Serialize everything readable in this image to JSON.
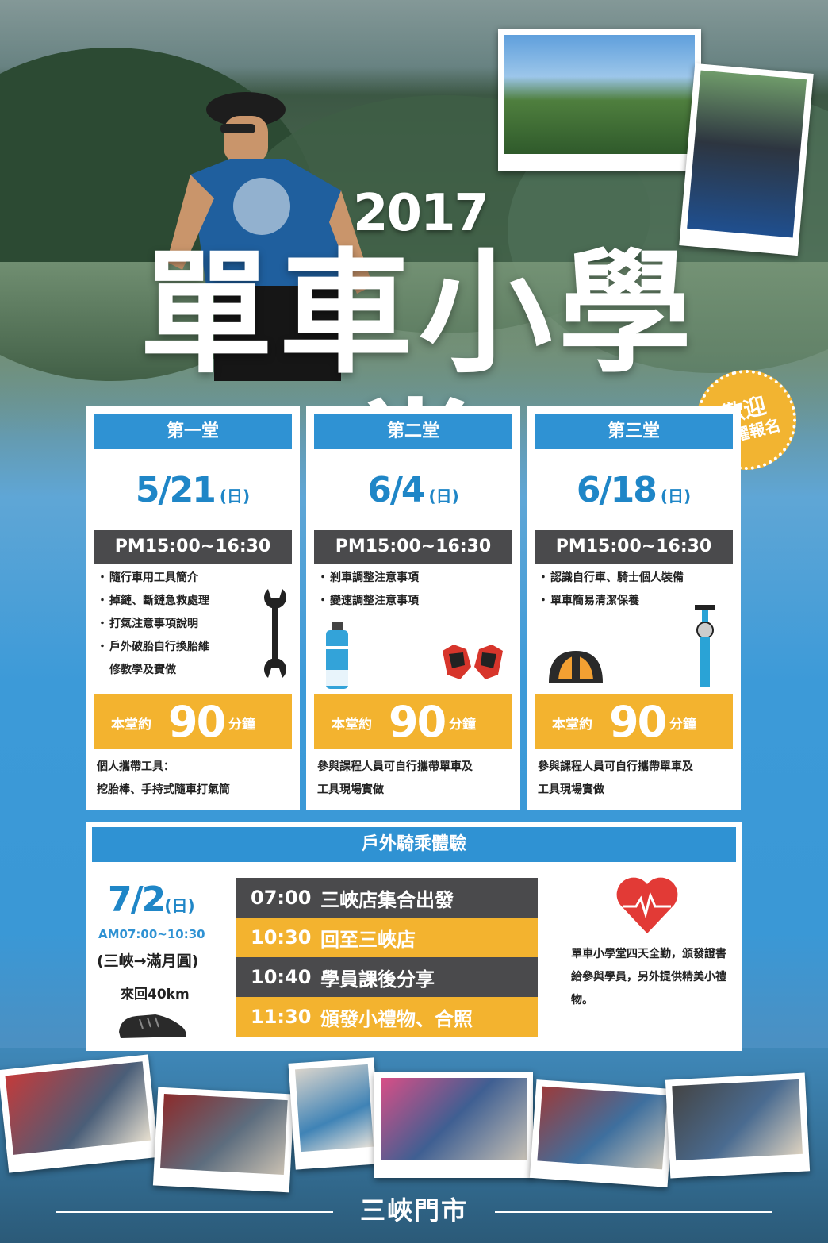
{
  "event": {
    "year": "2017",
    "title": "單車小學堂",
    "badge_line1": "歡迎",
    "badge_line2": "踴躍報名"
  },
  "sessions": [
    {
      "header": "第一堂",
      "date": "5/21",
      "weekday": "(日)",
      "time": "PM15:00~16:30",
      "items": [
        "隨行車用工具簡介",
        "掉鏈、斷鏈急救處理",
        "打氣注意事項說明",
        "戶外破胎自行換胎維",
        "修教學及實做"
      ],
      "duration_prefix": "本堂約",
      "duration_value": "90",
      "duration_suffix": "分鐘",
      "note_line1": "個人攜帶工具：",
      "note_line2": "挖胎棒、手持式隨車打氣筒",
      "icon": "wrench-icon"
    },
    {
      "header": "第二堂",
      "date": "6/4",
      "weekday": "(日)",
      "time": "PM15:00~16:30",
      "items": [
        "剎車調整注意事項",
        "變速調整注意事項"
      ],
      "duration_prefix": "本堂約",
      "duration_value": "90",
      "duration_suffix": "分鐘",
      "note_line1": "參與課程人員可自行攜帶單車及",
      "note_line2": "工具現場實做",
      "icon": "water-bottle-icon"
    },
    {
      "header": "第三堂",
      "date": "6/18",
      "weekday": "(日)",
      "time": "PM15:00~16:30",
      "items": [
        "認識自行車、騎士個人裝備",
        "單車簡易清潔保養"
      ],
      "duration_prefix": "本堂約",
      "duration_value": "90",
      "duration_suffix": "分鐘",
      "note_line1": "參與課程人員可自行攜帶單車及",
      "note_line2": "工具現場實做",
      "icon": "helmet-icon"
    }
  ],
  "outdoor": {
    "header": "戶外騎乘體驗",
    "date": "7/2",
    "weekday": "(日)",
    "time": "AM07:00~10:30",
    "route": "(三峽→滿月圓)",
    "distance": "來回40km",
    "schedule": [
      {
        "time": "07:00",
        "text": "三峽店集合出發"
      },
      {
        "time": "10:30",
        "text": "回至三峽店"
      },
      {
        "time": "10:40",
        "text": "學員課後分享"
      },
      {
        "time": "11:30",
        "text": "頒發小禮物、合照"
      }
    ],
    "certificate_note": "單車小學堂四天全勤，頒發證書給參與學員，另外提供精美小禮物。"
  },
  "footer": {
    "store": "三峽門市"
  },
  "colors": {
    "blue": "#2f92d3",
    "gold": "#f3b32f",
    "dark": "#4a4a4c",
    "date_blue": "#1f86c7"
  }
}
